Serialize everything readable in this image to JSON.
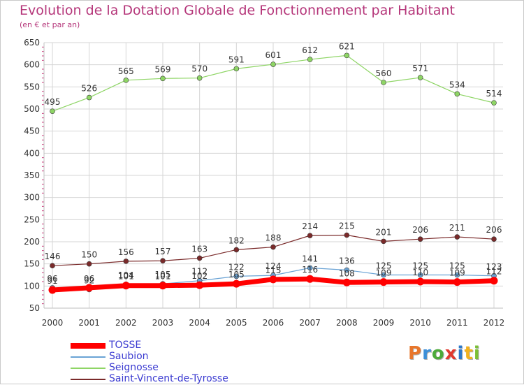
{
  "title": "Evolution de la Dotation Globale de Fonctionnement par Habitant",
  "subtitle": "(en € et par an)",
  "logo": {
    "text": "Proxiti",
    "colors": [
      "#e8762b",
      "#3c8fd8",
      "#4caa3b",
      "#e03a2f",
      "#2d78c8",
      "#f2b11c",
      "#7bbf36"
    ]
  },
  "chart_data": {
    "type": "line",
    "x": [
      "2000",
      "2001",
      "2002",
      "2003",
      "2004",
      "2005",
      "2006",
      "2007",
      "2008",
      "2009",
      "2010",
      "2011",
      "2012"
    ],
    "ylim": [
      50,
      650
    ],
    "yticks": [
      "50",
      "100",
      "150",
      "200",
      "250",
      "300",
      "350",
      "400",
      "450",
      "500",
      "550",
      "600",
      "650"
    ],
    "grid": true,
    "series": [
      {
        "name": "TOSSE",
        "color": "#ff0000",
        "values": [
          91,
          96,
          101,
          101,
          102,
          105,
          115,
          116,
          108,
          109,
          110,
          109,
          112
        ]
      },
      {
        "name": "Saubion",
        "color": "#6aa3d5",
        "values": [
          96,
          92,
          104,
          105,
          112,
          122,
          124,
          141,
          136,
          125,
          125,
          125,
          123
        ]
      },
      {
        "name": "Seignosse",
        "color": "#8ed565",
        "values": [
          495,
          526,
          565,
          569,
          570,
          591,
          601,
          612,
          621,
          560,
          571,
          534,
          514
        ]
      },
      {
        "name": "Saint-Vincent-de-Tyrosse",
        "color": "#7a2a2a",
        "values": [
          146,
          150,
          156,
          157,
          163,
          182,
          188,
          214,
          215,
          201,
          206,
          211,
          206
        ]
      }
    ]
  }
}
